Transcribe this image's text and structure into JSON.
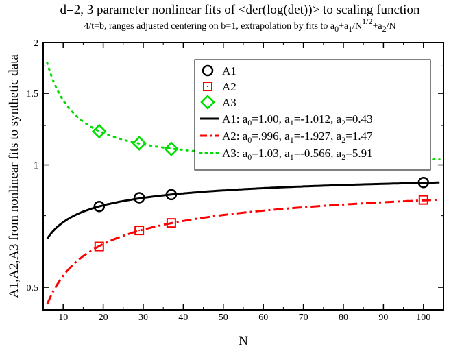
{
  "chart_data": {
    "type": "scatter",
    "title": "d=2,  3 parameter nonlinear fits of <der(log(det))> to scaling function",
    "subtitle": "4/t=b, ranges adjusted centering on b=1, extrapolation by fits to a0+a1/N1/2+a2/N",
    "xlabel": "N",
    "ylabel": "A1,A2,A3 from nonlinear fits to synthetic data",
    "xlim": [
      5,
      105
    ],
    "ylim": [
      0.44,
      2.0
    ],
    "y_scale": "log",
    "x_ticks": [
      10,
      20,
      30,
      40,
      50,
      60,
      70,
      80,
      90,
      100
    ],
    "y_ticks": [
      0.5,
      1,
      1.5,
      2
    ],
    "y_tick_labels": [
      "0.5",
      "1",
      "1.5",
      "2"
    ],
    "legend_position": "top-right",
    "series": [
      {
        "name": "A1",
        "marker": "circle",
        "color": "#000000",
        "x": [
          19,
          29,
          37,
          100
        ],
        "y": [
          0.79,
          0.83,
          0.845,
          0.905
        ]
      },
      {
        "name": "A2",
        "marker": "square",
        "color": "#ff0000",
        "x": [
          19,
          29,
          37,
          100
        ],
        "y": [
          0.63,
          0.69,
          0.72,
          0.82
        ]
      },
      {
        "name": "A3",
        "marker": "diamond",
        "color": "#00dd00",
        "x": [
          19,
          29,
          37,
          100
        ],
        "y": [
          1.21,
          1.13,
          1.095,
          1.03
        ]
      }
    ],
    "fits": [
      {
        "name": "A1",
        "a0": 1.0,
        "a1": -1.012,
        "a2": 0.43,
        "color": "#000000",
        "style": "solid",
        "x_range": [
          6,
          104
        ],
        "legend": {
          "pre": "A1: a",
          "a0": "=1.00, a",
          "a1": "=-1.012, a",
          "a2": "=0.43"
        }
      },
      {
        "name": "A2",
        "a0": 0.996,
        "a1": -1.927,
        "a2": 1.47,
        "color": "#ff0000",
        "style": "dashdot",
        "x_range": [
          6,
          104
        ],
        "legend": {
          "pre": "A2: a",
          "a0": "=.996, a",
          "a1": "=-1.927, a",
          "a2": "=1.47"
        }
      },
      {
        "name": "A3",
        "a0": 1.03,
        "a1": -0.566,
        "a2": 5.91,
        "color": "#00dd00",
        "style": "dotted",
        "x_range": [
          6,
          104
        ],
        "legend": {
          "pre": "A3: a",
          "a0": "=1.03, a",
          "a1": "=-0.566, a",
          "a2": "=5.91"
        }
      }
    ]
  }
}
